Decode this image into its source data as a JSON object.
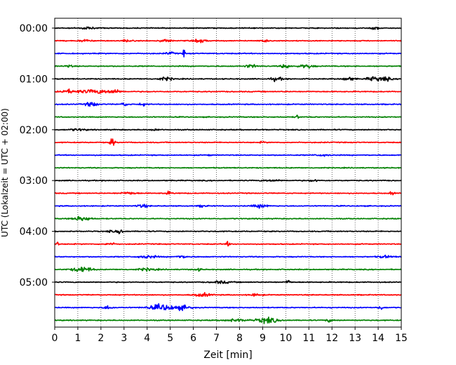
{
  "chart_data": {
    "type": "line",
    "title": "",
    "xlabel": "Zeit  [min]",
    "ylabel": "UTC (Lokalzeit = UTC + 02:00)",
    "xlim": [
      0,
      15
    ],
    "x_ticks": [
      "0",
      "1",
      "2",
      "3",
      "4",
      "5",
      "6",
      "7",
      "8",
      "9",
      "10",
      "11",
      "12",
      "13",
      "14",
      "15"
    ],
    "y_ticks": [
      "00:00",
      "01:00",
      "02:00",
      "03:00",
      "04:00",
      "05:00"
    ],
    "grid": "vertical dotted lines at each minute",
    "legend": "none",
    "colors": [
      "#000000",
      "#ff0000",
      "#0000ff",
      "#008000"
    ],
    "traces": [
      {
        "start": "00:00",
        "color": "#000000",
        "events": [
          [
            1.4,
            0.35,
            0.25
          ],
          [
            13.9,
            0.35,
            0.2
          ]
        ]
      },
      {
        "start": "00:15",
        "color": "#ff0000",
        "events": [
          [
            1.3,
            0.3,
            0.2
          ],
          [
            3.1,
            0.3,
            0.2
          ],
          [
            4.8,
            0.35,
            0.25
          ],
          [
            6.3,
            0.4,
            0.25
          ],
          [
            9.1,
            0.3,
            0.2
          ]
        ]
      },
      {
        "start": "00:30",
        "color": "#0000ff",
        "events": [
          [
            5.0,
            0.3,
            0.2
          ],
          [
            5.6,
            1.0,
            0.05
          ]
        ]
      },
      {
        "start": "00:45",
        "color": "#008000",
        "events": [
          [
            0.6,
            0.25,
            0.2
          ],
          [
            8.5,
            0.4,
            0.25
          ],
          [
            10.0,
            0.5,
            0.2
          ],
          [
            10.9,
            0.45,
            0.3
          ]
        ]
      },
      {
        "start": "01:00",
        "color": "#000000",
        "events": [
          [
            4.8,
            0.4,
            0.3
          ],
          [
            9.6,
            0.45,
            0.25
          ],
          [
            12.7,
            0.45,
            0.25
          ],
          [
            13.8,
            0.5,
            0.3
          ],
          [
            14.3,
            0.45,
            0.25
          ]
        ]
      },
      {
        "start": "01:15",
        "color": "#ff0000",
        "events": [
          [
            0.6,
            0.4,
            0.5
          ],
          [
            1.8,
            0.5,
            0.6
          ],
          [
            2.6,
            0.45,
            0.25
          ]
        ]
      },
      {
        "start": "01:30",
        "color": "#0000ff",
        "events": [
          [
            1.6,
            0.6,
            0.25
          ],
          [
            3.0,
            0.4,
            0.15
          ],
          [
            3.8,
            0.35,
            0.15
          ]
        ]
      },
      {
        "start": "01:45",
        "color": "#008000",
        "events": [
          [
            10.5,
            0.45,
            0.1
          ]
        ]
      },
      {
        "start": "02:00",
        "color": "#000000",
        "events": [
          [
            1.0,
            0.25,
            0.35
          ],
          [
            4.3,
            0.2,
            0.2
          ]
        ]
      },
      {
        "start": "02:15",
        "color": "#ff0000",
        "events": [
          [
            2.5,
            1.0,
            0.1
          ],
          [
            9.0,
            0.2,
            0.1
          ]
        ]
      },
      {
        "start": "02:30",
        "color": "#0000ff",
        "events": [
          [
            6.7,
            0.35,
            0.05
          ],
          [
            11.6,
            0.25,
            0.3
          ]
        ]
      },
      {
        "start": "02:45",
        "color": "#008000",
        "events": []
      },
      {
        "start": "03:00",
        "color": "#000000",
        "events": [
          [
            9.4,
            0.2,
            0.4
          ],
          [
            11.2,
            0.25,
            0.2
          ]
        ]
      },
      {
        "start": "03:15",
        "color": "#ff0000",
        "events": [
          [
            3.2,
            0.3,
            0.35
          ],
          [
            4.9,
            0.3,
            0.2
          ],
          [
            14.6,
            0.35,
            0.1
          ]
        ]
      },
      {
        "start": "03:30",
        "color": "#0000ff",
        "events": [
          [
            3.8,
            0.35,
            0.25
          ],
          [
            6.4,
            0.35,
            0.15
          ],
          [
            8.9,
            0.45,
            0.3
          ]
        ]
      },
      {
        "start": "03:45",
        "color": "#008000",
        "events": [
          [
            1.2,
            0.6,
            0.35
          ]
        ]
      },
      {
        "start": "04:00",
        "color": "#000000",
        "events": [
          [
            2.8,
            0.7,
            0.15
          ],
          [
            2.4,
            0.3,
            0.1
          ]
        ]
      },
      {
        "start": "04:15",
        "color": "#ff0000",
        "events": [
          [
            0.1,
            0.5,
            0.1
          ],
          [
            2.4,
            0.5,
            0.15
          ],
          [
            7.5,
            0.5,
            0.1
          ]
        ]
      },
      {
        "start": "04:30",
        "color": "#0000ff",
        "events": [
          [
            4.0,
            0.35,
            0.4
          ],
          [
            5.5,
            0.3,
            0.3
          ],
          [
            14.3,
            0.3,
            0.3
          ]
        ]
      },
      {
        "start": "04:45",
        "color": "#008000",
        "events": [
          [
            1.2,
            0.7,
            0.4
          ],
          [
            4.0,
            0.3,
            0.4
          ],
          [
            6.2,
            0.3,
            0.15
          ]
        ]
      },
      {
        "start": "05:00",
        "color": "#000000",
        "events": [
          [
            7.2,
            0.3,
            0.4
          ],
          [
            10.1,
            0.6,
            0.1
          ]
        ]
      },
      {
        "start": "05:15",
        "color": "#ff0000",
        "events": [
          [
            6.4,
            0.4,
            0.35
          ],
          [
            8.7,
            0.3,
            0.25
          ]
        ]
      },
      {
        "start": "05:30",
        "color": "#0000ff",
        "events": [
          [
            2.3,
            0.4,
            0.2
          ],
          [
            4.7,
            0.75,
            0.6
          ],
          [
            5.6,
            0.45,
            0.3
          ],
          [
            14.1,
            0.45,
            0.15
          ]
        ]
      },
      {
        "start": "05:45",
        "color": "#008000",
        "events": [
          [
            7.8,
            0.3,
            0.5
          ],
          [
            9.2,
            0.7,
            0.45
          ],
          [
            11.9,
            0.3,
            0.2
          ]
        ]
      }
    ]
  }
}
